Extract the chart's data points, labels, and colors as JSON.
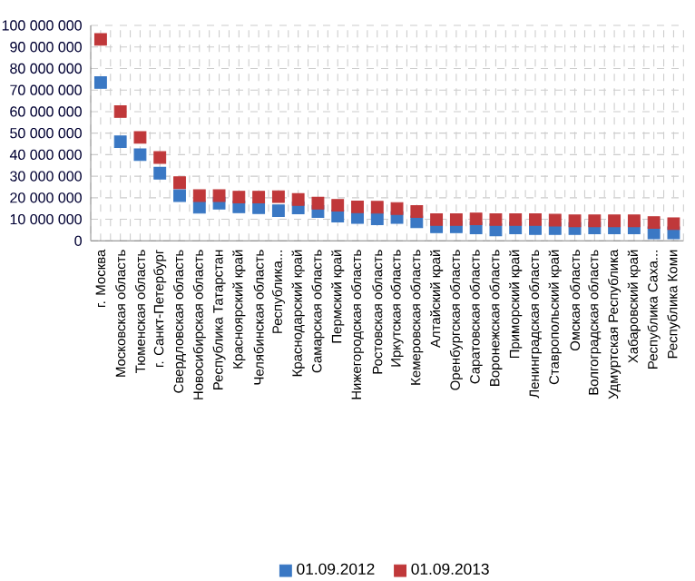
{
  "chart_data": {
    "type": "scatter",
    "categories": [
      "г. Москва",
      "Московская область",
      "Тюменская область",
      "г. Санкт-Петербург",
      "Свердловская область",
      "Новосибирская область",
      "Республика Татарстан",
      "Красноярский край",
      "Челябинская область",
      "Республика...",
      "Краснодарский край",
      "Самарская область",
      "Пермский край",
      "Нижегородская область",
      "Ростовская область",
      "Иркутская область",
      "Кемеровская область",
      "Алтайский край",
      "Оренбургская область",
      "Саратовская область",
      "Воронежская область",
      "Приморский край",
      "Ленинградская область",
      "Ставропольский край",
      "Омская область",
      "Волгоградская область",
      "Удмуртская Республика",
      "Хабаровский край",
      "Республика Саха...",
      "Республика Коми"
    ],
    "series": [
      {
        "name": "01.09.2012",
        "color": "#3a78c4",
        "values": [
          73500000,
          46000000,
          40000000,
          31400000,
          21000000,
          15600000,
          17500000,
          15800000,
          15400000,
          14000000,
          15300000,
          13600000,
          11500000,
          10800000,
          10200000,
          10800000,
          8800000,
          6500000,
          6500000,
          6000000,
          5100000,
          6000000,
          5700000,
          5700000,
          5700000,
          6000000,
          6000000,
          6000000,
          3700000,
          3700000
        ]
      },
      {
        "name": "01.09.2013",
        "color": "#c0383a",
        "values": [
          93500000,
          60000000,
          48000000,
          38700000,
          27000000,
          21000000,
          21000000,
          20300000,
          20300000,
          20500000,
          19200000,
          17500000,
          16500000,
          15800000,
          15600000,
          15000000,
          13600000,
          9900000,
          9900000,
          10200000,
          9900000,
          9900000,
          9900000,
          9600000,
          9300000,
          9300000,
          9300000,
          9300000,
          8500000,
          8000000
        ]
      }
    ],
    "ylim": [
      0,
      100000000
    ],
    "yticks": [
      0,
      {
        "value": 10000000,
        "label": "10 000 000"
      },
      {
        "value": 20000000,
        "label": "20 000 000"
      },
      {
        "value": 30000000,
        "label": "30 000 000"
      },
      {
        "value": 40000000,
        "label": "40 000 000"
      },
      {
        "value": 50000000,
        "label": "50 000 000"
      },
      {
        "value": 60000000,
        "label": "60 000 000"
      },
      {
        "value": 70000000,
        "label": "70 000 000"
      },
      {
        "value": 80000000,
        "label": "80 000 000"
      },
      {
        "value": 90000000,
        "label": "90 000 000"
      },
      {
        "value": 100000000,
        "label": "100 000 000"
      }
    ],
    "grid": true,
    "legend": "bottom",
    "marker": "square"
  }
}
